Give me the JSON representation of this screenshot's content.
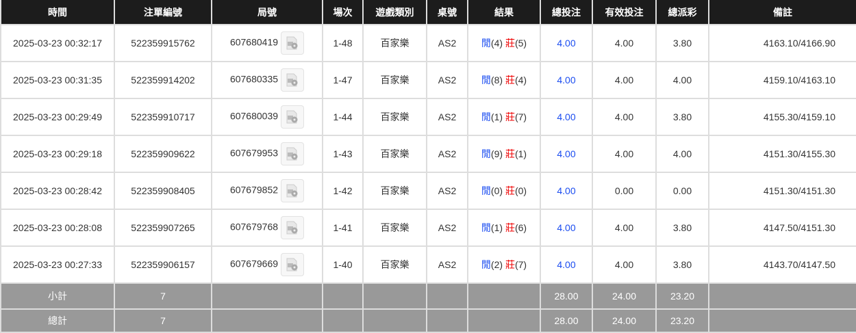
{
  "headers": [
    "時間",
    "注單編號",
    "局號",
    "場次",
    "遊戲類別",
    "桌號",
    "結果",
    "總投注",
    "有效投注",
    "總派彩",
    "備註"
  ],
  "rows": [
    {
      "time": "2025-03-23 00:32:17",
      "bet_id": "522359915762",
      "round": "607680419",
      "shoe": "1-48",
      "game": "百家樂",
      "table": "AS2",
      "player_label": "閒",
      "player": "(4)",
      "banker_label": "莊",
      "banker": "(5)",
      "total": "4.00",
      "valid": "4.00",
      "payout": "3.80",
      "note": "4163.10/4166.90"
    },
    {
      "time": "2025-03-23 00:31:35",
      "bet_id": "522359914202",
      "round": "607680335",
      "shoe": "1-47",
      "game": "百家樂",
      "table": "AS2",
      "player_label": "閒",
      "player": "(8)",
      "banker_label": "莊",
      "banker": "(4)",
      "total": "4.00",
      "valid": "4.00",
      "payout": "4.00",
      "note": "4159.10/4163.10"
    },
    {
      "time": "2025-03-23 00:29:49",
      "bet_id": "522359910717",
      "round": "607680039",
      "shoe": "1-44",
      "game": "百家樂",
      "table": "AS2",
      "player_label": "閒",
      "player": "(1)",
      "banker_label": "莊",
      "banker": "(7)",
      "total": "4.00",
      "valid": "4.00",
      "payout": "3.80",
      "note": "4155.30/4159.10"
    },
    {
      "time": "2025-03-23 00:29:18",
      "bet_id": "522359909622",
      "round": "607679953",
      "shoe": "1-43",
      "game": "百家樂",
      "table": "AS2",
      "player_label": "閒",
      "player": "(9)",
      "banker_label": "莊",
      "banker": "(1)",
      "total": "4.00",
      "valid": "4.00",
      "payout": "4.00",
      "note": "4151.30/4155.30"
    },
    {
      "time": "2025-03-23 00:28:42",
      "bet_id": "522359908405",
      "round": "607679852",
      "shoe": "1-42",
      "game": "百家樂",
      "table": "AS2",
      "player_label": "閒",
      "player": "(0)",
      "banker_label": "莊",
      "banker": "(0)",
      "total": "4.00",
      "valid": "0.00",
      "payout": "0.00",
      "note": "4151.30/4151.30"
    },
    {
      "time": "2025-03-23 00:28:08",
      "bet_id": "522359907265",
      "round": "607679768",
      "shoe": "1-41",
      "game": "百家樂",
      "table": "AS2",
      "player_label": "閒",
      "player": "(1)",
      "banker_label": "莊",
      "banker": "(6)",
      "total": "4.00",
      "valid": "4.00",
      "payout": "3.80",
      "note": "4147.50/4151.30"
    },
    {
      "time": "2025-03-23 00:27:33",
      "bet_id": "522359906157",
      "round": "607679669",
      "shoe": "1-40",
      "game": "百家樂",
      "table": "AS2",
      "player_label": "閒",
      "player": "(2)",
      "banker_label": "莊",
      "banker": "(7)",
      "total": "4.00",
      "valid": "4.00",
      "payout": "3.80",
      "note": "4143.70/4147.50"
    }
  ],
  "subtotal": {
    "label": "小計",
    "count": "7",
    "total": "28.00",
    "valid": "24.00",
    "payout": "23.20"
  },
  "grandtotal": {
    "label": "總計",
    "count": "7",
    "total": "28.00",
    "valid": "24.00",
    "payout": "23.20"
  },
  "colors": {
    "header_bg": "#1c1c1c",
    "footer_bg": "#999999",
    "player": "#1a4cf0",
    "banker": "#e00000"
  }
}
